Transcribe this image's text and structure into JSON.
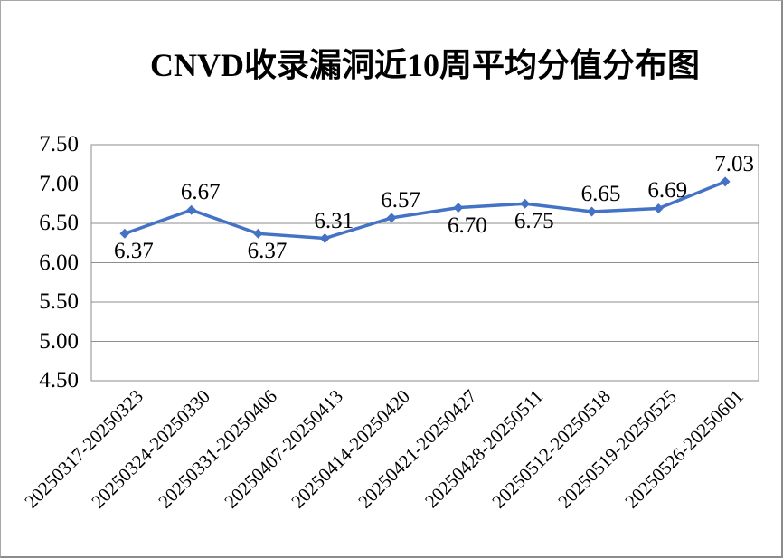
{
  "page": {
    "background_color": "#ffffff",
    "frame_border_color": "#8c8c8c"
  },
  "chart_data": {
    "type": "line",
    "title": "CNVD收录漏洞近10周平均分值分布图",
    "categories": [
      "20250317-20250323",
      "20250324-20250330",
      "20250331-20250406",
      "20250407-20250413",
      "20250414-20250420",
      "20250421-20250427",
      "20250428-20250511",
      "20250512-20250518",
      "20250519-20250525",
      "20250526-20250601"
    ],
    "values": [
      6.37,
      6.67,
      6.37,
      6.31,
      6.57,
      6.7,
      6.75,
      6.65,
      6.69,
      7.03
    ],
    "data_labels": [
      "6.37",
      "6.67",
      "6.37",
      "6.31",
      "6.57",
      "6.70",
      "6.75",
      "6.65",
      "6.69",
      "7.03"
    ],
    "data_label_positions": [
      "below",
      "above",
      "below",
      "above",
      "above",
      "below",
      "below",
      "above",
      "above",
      "above"
    ],
    "xlabel": "",
    "ylabel": "",
    "ylim": [
      4.5,
      7.5
    ],
    "ytick_step": 0.5,
    "yticks": [
      "7.50",
      "7.00",
      "6.50",
      "6.00",
      "5.50",
      "5.00",
      "4.50"
    ],
    "x_label_rotation_deg": -45,
    "grid": true,
    "legend_position": "none",
    "line_color": "#4472C4",
    "marker": "diamond",
    "marker_color": "#4472C4",
    "gridline_color": "#8e8e8e",
    "plot_border_color": "#8e8e8e",
    "text_color": "#000000"
  }
}
